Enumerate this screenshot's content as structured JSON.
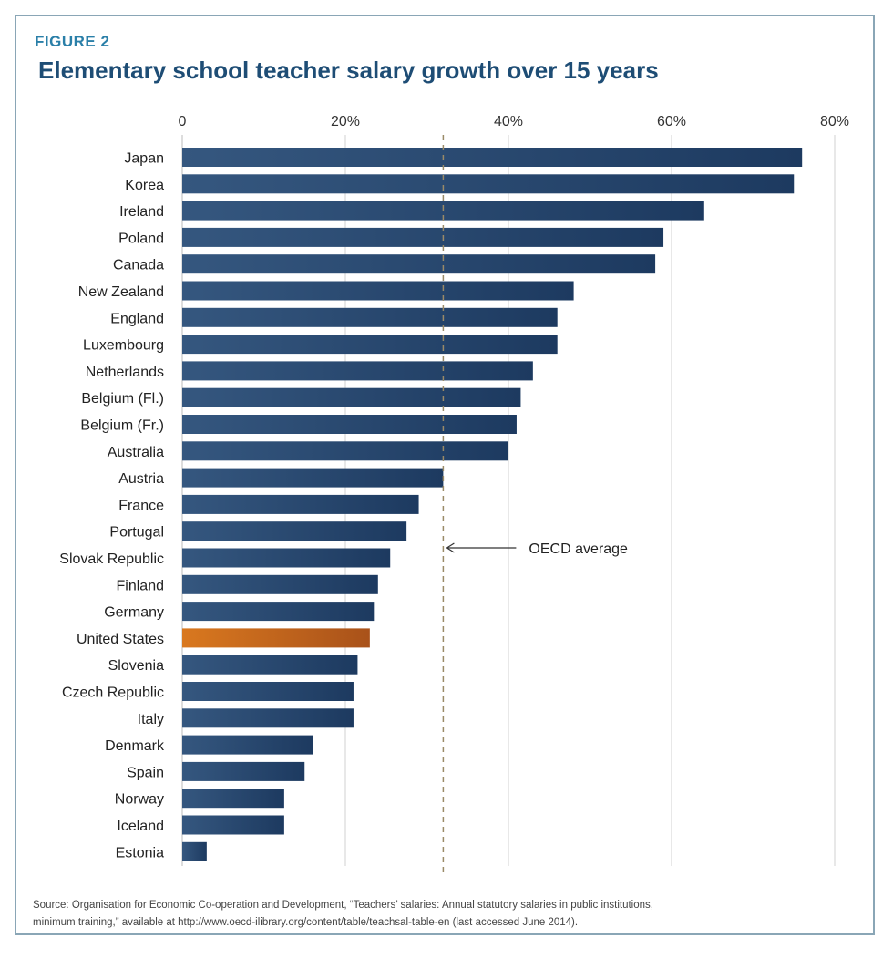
{
  "figure_label": "FIGURE 2",
  "source": {
    "line1": "Source: Organisation for Economic Co-operation and Development, “Teachers’ salaries: Annual statutory salaries in public institutions,",
    "line2": "minimum training,” available at http://www.oecd-ilibrary.org/content/table/teachsal-table-en (last accessed June 2014)."
  },
  "colors": {
    "bar": "#35577f",
    "bar_dark": "#1d3a60",
    "highlight": "#d9781f",
    "highlight_dark": "#a9521a",
    "gridline": "#d0d0d0",
    "average_line": "#9a8a68",
    "title": "#1e4d75",
    "figure_label": "#2a7fa8",
    "frame": "#8aa6b6"
  },
  "chart_data": {
    "type": "bar",
    "orientation": "horizontal",
    "title": "Elementary school teacher salary growth over 15 years",
    "xlabel": "",
    "ylabel": "",
    "xlim": [
      0,
      80
    ],
    "x_ticks": [
      0,
      20,
      40,
      60,
      80
    ],
    "x_tick_labels": [
      "0",
      "20%",
      "40%",
      "60%",
      "80%"
    ],
    "grid": true,
    "categories": [
      "Japan",
      "Korea",
      "Ireland",
      "Poland",
      "Canada",
      "New Zealand",
      "England",
      "Luxembourg",
      "Netherlands",
      "Belgium (Fl.)",
      "Belgium (Fr.)",
      "Australia",
      "Austria",
      "France",
      "Portugal",
      "Slovak Republic",
      "Finland",
      "Germany",
      "United States",
      "Slovenia",
      "Czech Republic",
      "Italy",
      "Denmark",
      "Spain",
      "Norway",
      "Iceland",
      "Estonia"
    ],
    "values": [
      76,
      75,
      64,
      59,
      58,
      48,
      46,
      46,
      43,
      41.5,
      41,
      40,
      32,
      29,
      27.5,
      25.5,
      24,
      23.5,
      23,
      21.5,
      21,
      21,
      16,
      15,
      12.5,
      12.5,
      3
    ],
    "highlight": "United States",
    "reference_line": {
      "value": 32,
      "label": "OECD average"
    }
  }
}
